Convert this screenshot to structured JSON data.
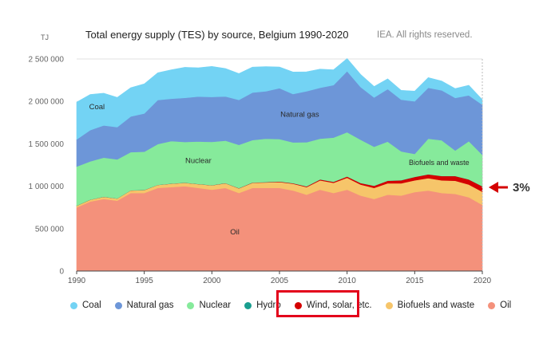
{
  "header": {
    "title": "Total energy supply (TES) by source, Belgium 1990-2020",
    "credit": "IEA. All rights reserved.",
    "unit": "TJ"
  },
  "annotation": {
    "text": "3%",
    "color": "#d40000"
  },
  "highlight_color": "#e3001b",
  "chart_data": {
    "type": "area",
    "stacked": true,
    "title": "Total energy supply (TES) by source, Belgium 1990-2020",
    "ylabel": "TJ",
    "xlabel": "",
    "xlim": [
      1990,
      2020
    ],
    "ylim": [
      0,
      2500000
    ],
    "x_ticks": [
      "1990",
      "1995",
      "2000",
      "2005",
      "2010",
      "2015",
      "2020"
    ],
    "y_ticks": [
      "0",
      "500 000",
      "1 000 000",
      "1 500 000",
      "2 000 000",
      "2 500 000"
    ],
    "grid": true,
    "legend_position": "bottom",
    "x": [
      1990,
      1991,
      1992,
      1993,
      1994,
      1995,
      1996,
      1997,
      1998,
      1999,
      2000,
      2001,
      2002,
      2003,
      2004,
      2005,
      2006,
      2007,
      2008,
      2009,
      2010,
      2011,
      2012,
      2013,
      2014,
      2015,
      2016,
      2017,
      2018,
      2019,
      2020
    ],
    "series": [
      {
        "name": "Oil",
        "color": "#f4917b",
        "area_label": "Oil",
        "values": [
          750000,
          820000,
          850000,
          830000,
          920000,
          920000,
          980000,
          990000,
          1000000,
          980000,
          960000,
          980000,
          920000,
          980000,
          980000,
          980000,
          950000,
          900000,
          960000,
          920000,
          960000,
          890000,
          850000,
          900000,
          890000,
          930000,
          950000,
          920000,
          910000,
          870000,
          780000
        ]
      },
      {
        "name": "Biofuels and waste",
        "color": "#f6c56a",
        "area_label": "Biofuels and waste",
        "values": [
          20000,
          20000,
          25000,
          25000,
          30000,
          35000,
          35000,
          40000,
          40000,
          45000,
          50000,
          55000,
          55000,
          60000,
          65000,
          70000,
          80000,
          90000,
          110000,
          120000,
          140000,
          130000,
          130000,
          135000,
          145000,
          140000,
          145000,
          150000,
          155000,
          150000,
          155000
        ]
      },
      {
        "name": "Wind, solar, etc.",
        "color": "#d40000",
        "values": [
          1000,
          1000,
          1000,
          1000,
          1000,
          1000,
          1000,
          1000,
          1000,
          1000,
          2000,
          2000,
          2000,
          3000,
          4000,
          5000,
          6000,
          8000,
          10000,
          12000,
          15000,
          18000,
          25000,
          30000,
          35000,
          40000,
          45000,
          50000,
          55000,
          60000,
          65000
        ]
      },
      {
        "name": "Hydro",
        "color": "#1a9e8f",
        "values": [
          1000,
          1000,
          1000,
          1000,
          1000,
          1000,
          1000,
          1000,
          1000,
          1000,
          1000,
          1000,
          1000,
          1000,
          1000,
          1000,
          1000,
          1000,
          1000,
          1000,
          1000,
          1000,
          1000,
          1000,
          1000,
          1000,
          1000,
          1000,
          1000,
          1000,
          1000
        ]
      },
      {
        "name": "Nuclear",
        "color": "#86ea9b",
        "area_label": "Nuclear",
        "values": [
          460000,
          450000,
          460000,
          460000,
          450000,
          450000,
          480000,
          500000,
          480000,
          500000,
          510000,
          500000,
          510000,
          500000,
          510000,
          500000,
          480000,
          520000,
          480000,
          520000,
          520000,
          510000,
          460000,
          460000,
          340000,
          270000,
          420000,
          420000,
          300000,
          450000,
          370000
        ]
      },
      {
        "name": "Natural gas",
        "color": "#6d96d8",
        "area_label": "Natural gas",
        "values": [
          320000,
          370000,
          380000,
          380000,
          420000,
          450000,
          520000,
          500000,
          520000,
          530000,
          530000,
          520000,
          530000,
          560000,
          560000,
          600000,
          570000,
          600000,
          600000,
          620000,
          720000,
          620000,
          580000,
          620000,
          610000,
          620000,
          600000,
          590000,
          620000,
          540000,
          590000
        ]
      },
      {
        "name": "Coal",
        "color": "#73d3f4",
        "area_label": "Coal",
        "values": [
          440000,
          420000,
          380000,
          350000,
          340000,
          350000,
          320000,
          340000,
          360000,
          340000,
          360000,
          330000,
          310000,
          300000,
          290000,
          250000,
          260000,
          230000,
          220000,
          180000,
          150000,
          150000,
          130000,
          120000,
          110000,
          120000,
          120000,
          110000,
          110000,
          120000,
          60000
        ]
      }
    ]
  },
  "legend": [
    {
      "label": "Coal",
      "color": "#73d3f4"
    },
    {
      "label": "Natural gas",
      "color": "#6d96d8"
    },
    {
      "label": "Nuclear",
      "color": "#86ea9b"
    },
    {
      "label": "Hydro",
      "color": "#1a9e8f"
    },
    {
      "label": "Wind, solar, etc.",
      "color": "#d40000",
      "highlighted": true
    },
    {
      "label": "Biofuels and waste",
      "color": "#f6c56a"
    },
    {
      "label": "Oil",
      "color": "#f4917b"
    }
  ]
}
